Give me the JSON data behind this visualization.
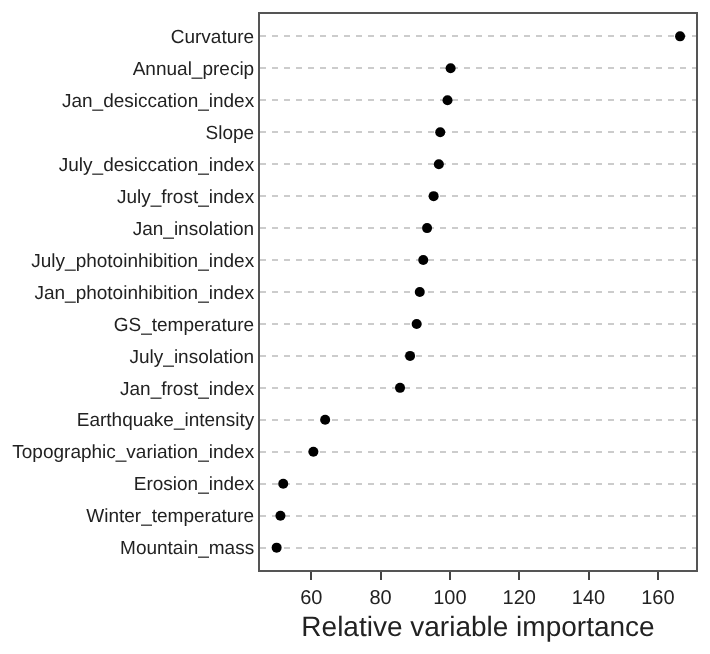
{
  "chart_data": {
    "type": "scatter",
    "orientation": "horizontal",
    "xlabel": "Relative variable importance",
    "categories": [
      "Curvature",
      "Annual_precip",
      "Jan_desiccation_index",
      "Slope",
      "July_desiccation_index",
      "July_frost_index",
      "Jan_insolation",
      "July_photoinhibition_index",
      "Jan_photoinhibition_index",
      "GS_temperature",
      "July_insolation",
      "Jan_frost_index",
      "Earthquake_intensity",
      "Topographic_variation_index",
      "Erosion_index",
      "Winter_temperature",
      "Mountain_mass"
    ],
    "series": [
      {
        "color": "#000000",
        "values": [
          166.4,
          100.2,
          99.3,
          97.2,
          96.8,
          95.3,
          93.4,
          92.3,
          91.3,
          90.4,
          88.5,
          85.6,
          64.0,
          60.6,
          51.9,
          51.1,
          50.0
        ]
      }
    ],
    "xlim": [
      45.2,
      171
    ],
    "xticks": [
      60,
      80,
      100,
      120,
      140,
      160
    ],
    "grid": "y",
    "marker": "circle"
  }
}
